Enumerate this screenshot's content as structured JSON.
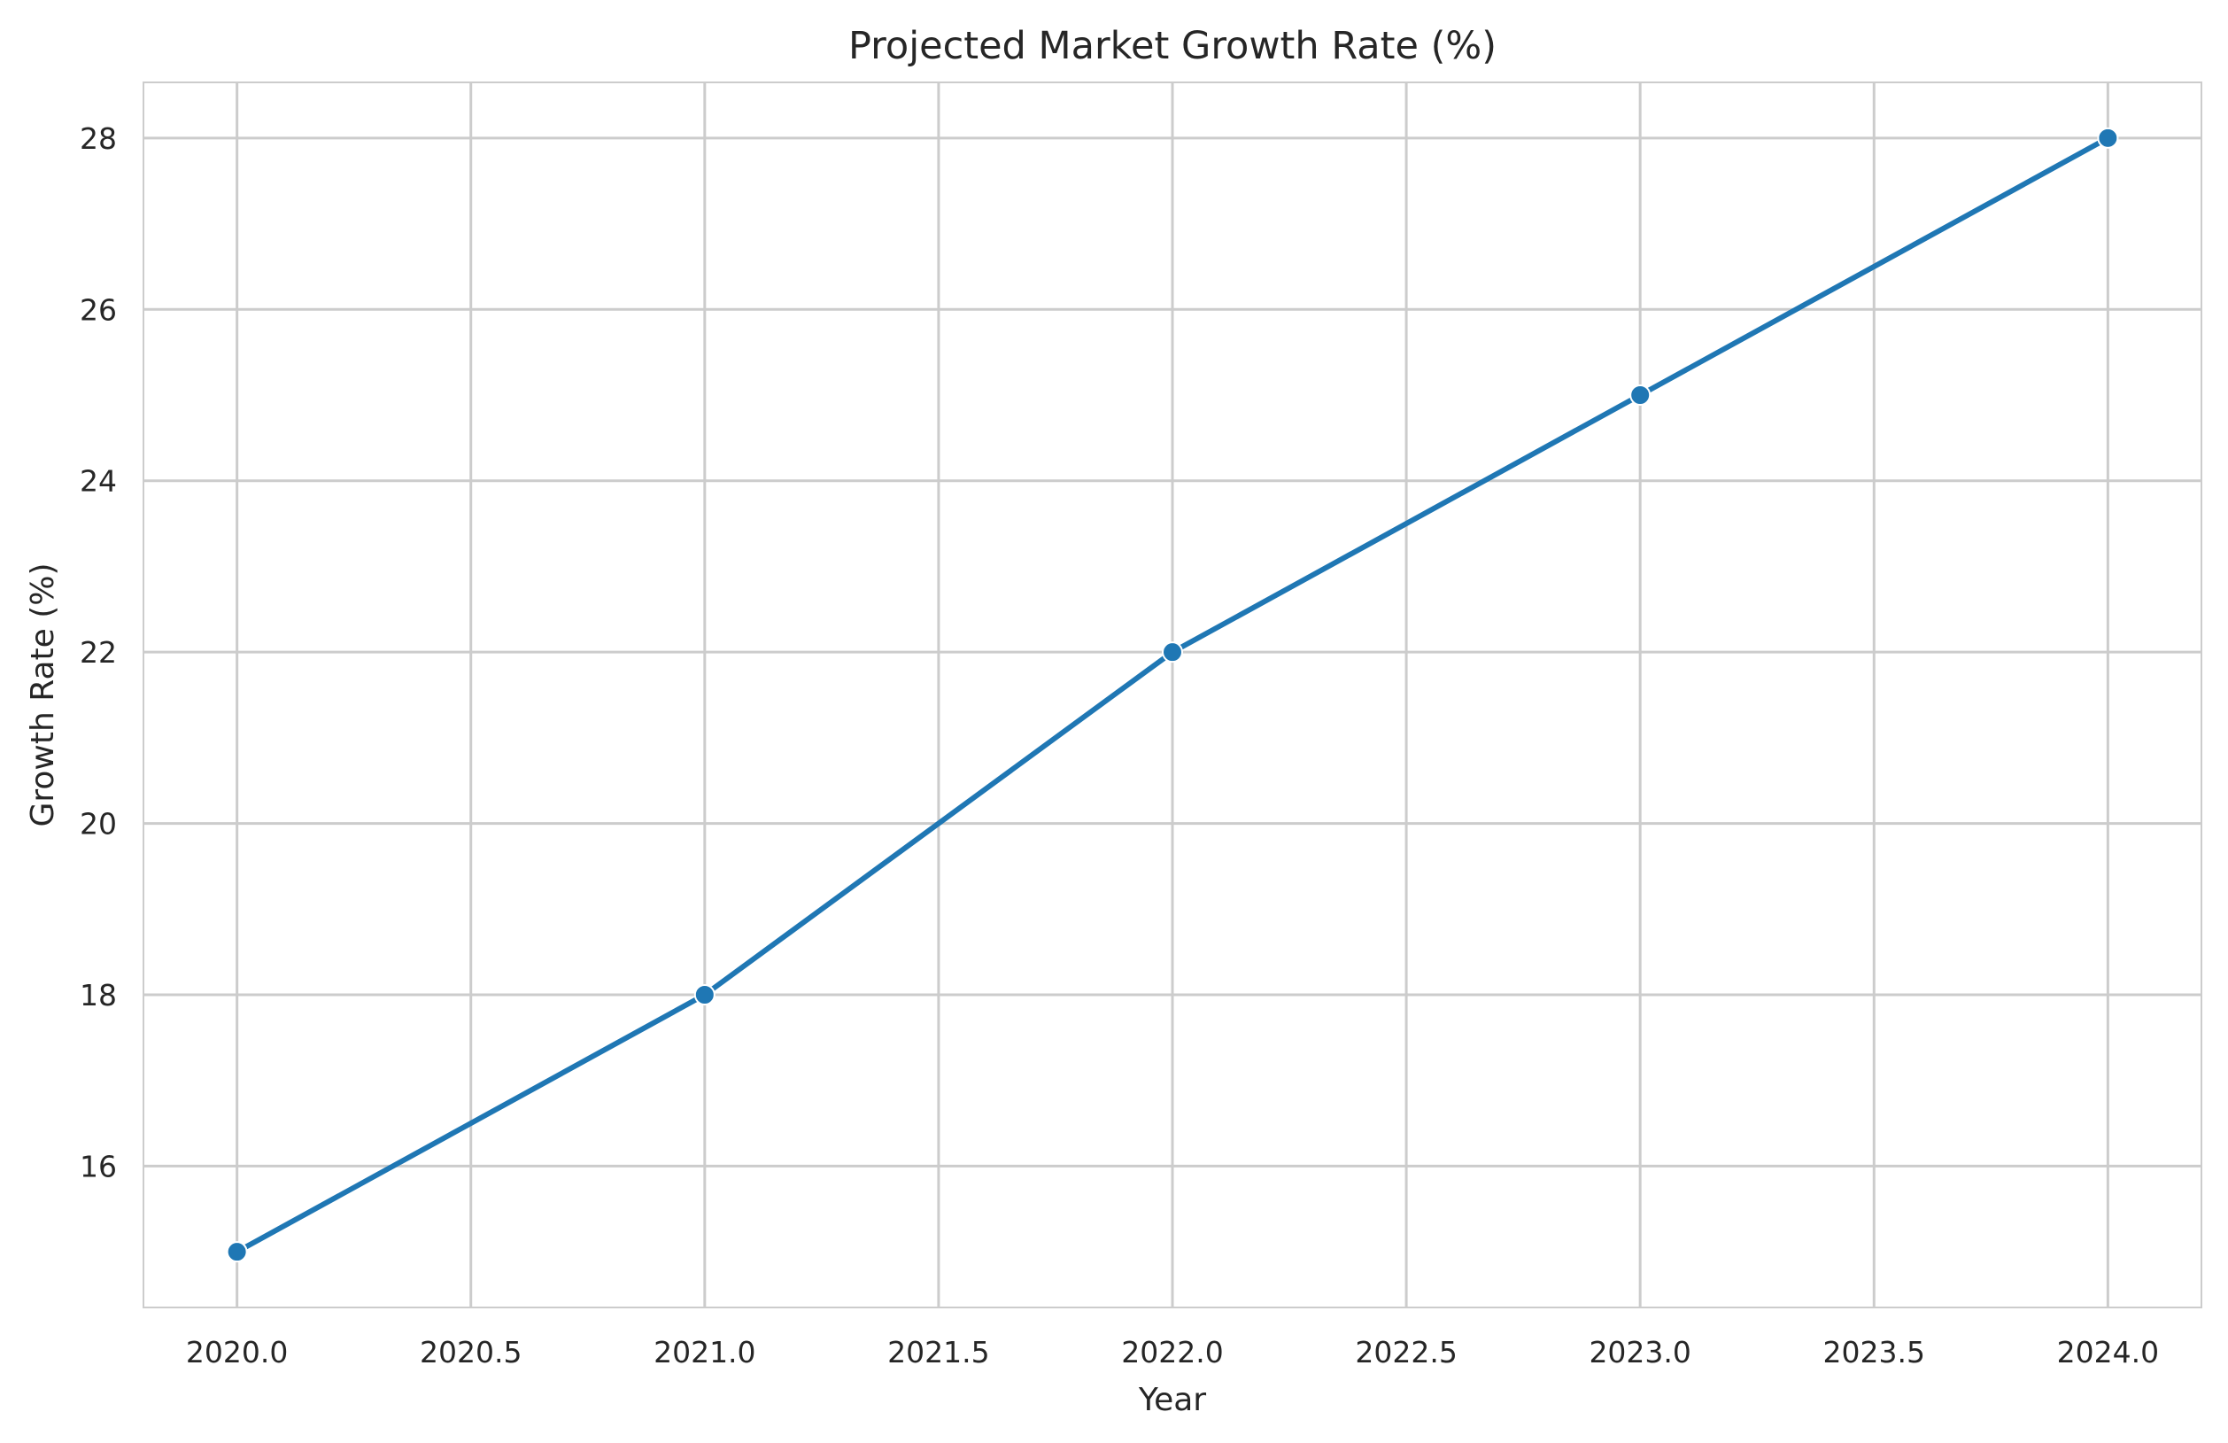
{
  "chart_data": {
    "type": "line",
    "title": "Projected Market Growth Rate (%)",
    "xlabel": "Year",
    "ylabel": "Growth Rate (%)",
    "x": [
      2020,
      2021,
      2022,
      2023,
      2024
    ],
    "series": [
      {
        "values": [
          15,
          18,
          22,
          25,
          28
        ],
        "color": "#1f77b4",
        "marker": "circle"
      }
    ],
    "xlim": [
      2019.8,
      2024.2
    ],
    "ylim": [
      14.35,
      28.65
    ],
    "xticks": [
      2020.0,
      2020.5,
      2021.0,
      2021.5,
      2022.0,
      2022.5,
      2023.0,
      2023.5,
      2024.0
    ],
    "xtick_labels": [
      "2020.0",
      "2020.5",
      "2021.0",
      "2021.5",
      "2022.0",
      "2022.5",
      "2023.0",
      "2023.5",
      "2024.0"
    ],
    "yticks": [
      16,
      18,
      20,
      22,
      24,
      26,
      28
    ],
    "ytick_labels": [
      "16",
      "18",
      "20",
      "22",
      "24",
      "26",
      "28"
    ],
    "grid": true,
    "legend": "none"
  }
}
